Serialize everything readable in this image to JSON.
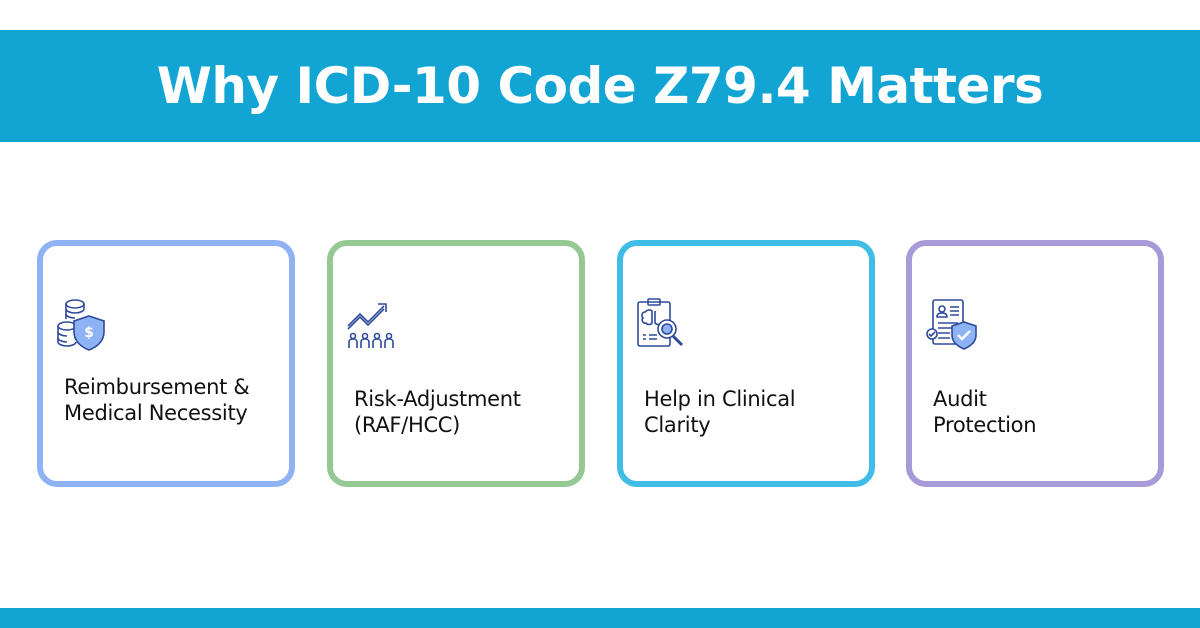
{
  "header": {
    "title": "Why ICD-10 Code Z79.4 Matters"
  },
  "colors": {
    "banner": "#12a5d4",
    "card_borders": [
      "#8fb2f5",
      "#96c896",
      "#3fbde6",
      "#a69ad8"
    ],
    "icon_stroke": "#2f4a9a",
    "icon_fill": "#8db3f4"
  },
  "cards": [
    {
      "label": "Reimbursement & Medical Necessity",
      "icon": "coins-shield-dollar-icon"
    },
    {
      "label": "Risk-Adjustment (RAF/HCC)",
      "icon": "trend-arrow-people-icon"
    },
    {
      "label": "Help in Clinical Clarity",
      "icon": "clipboard-brain-magnifier-icon"
    },
    {
      "label": "Audit Protection",
      "icon": "document-shield-check-icon"
    }
  ]
}
